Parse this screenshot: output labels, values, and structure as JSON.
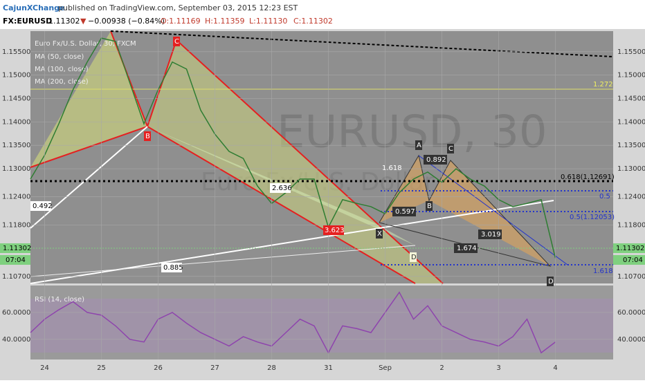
{
  "header": {
    "publisher": "CajunXChange",
    "published": "published on TradingView.com, September 03, 2015 12:23 EST",
    "symbol": "FX:EURUSD",
    "last": "1.11302",
    "arrow": "▼",
    "change": "−0.00938 (−0.84%)",
    "open": "O:1.11169",
    "high": "H:1.11359",
    "low": "L:1.11130",
    "close": "C:1.11302",
    "time_left": "07:04"
  },
  "chart_data": [
    {
      "type": "line",
      "title": "Euro Fx/U.S. Dollar, 30, FXCM",
      "watermark": "EURUSD, 30",
      "watermark_sub": "Euro Fx/U.S. Dollar",
      "indicators": [
        "MA (50, close)",
        "MA (100, close)",
        "MA (200, close)"
      ],
      "categories": [
        null,
        "24",
        null,
        null,
        null,
        "25",
        null,
        null,
        null,
        "26",
        null,
        null,
        null,
        "27",
        null,
        null,
        null,
        "28",
        null,
        null,
        null,
        "31",
        null,
        null,
        null,
        "Sep",
        null,
        null,
        null,
        "2",
        null,
        null,
        null,
        "3",
        null,
        null,
        null,
        "4",
        null,
        null,
        null,
        null
      ],
      "color": "#2e7d32",
      "values": [
        1.1278,
        1.1329,
        1.1396,
        1.1469,
        1.1528,
        1.1579,
        1.1572,
        1.1484,
        1.1396,
        1.1469,
        1.1528,
        1.1513,
        1.1425,
        1.1374,
        1.1337,
        1.1322,
        1.1263,
        1.1226,
        1.1249,
        1.1278,
        1.1278,
        1.1175,
        1.1234,
        1.1226,
        1.1219,
        1.1204,
        1.1249,
        1.1278,
        1.1293,
        1.1271,
        1.13,
        1.1278,
        1.1263,
        1.1234,
        1.1219,
        1.1226,
        1.1234,
        1.1109,
        null,
        null,
        null,
        null
      ],
      "ylim": [
        1.1055,
        1.1594
      ],
      "yticks": [
        {
          "value": 1.155,
          "label": "1.15500"
        },
        {
          "value": 1.15,
          "label": "1.15000"
        },
        {
          "value": 1.145,
          "label": "1.14500"
        },
        {
          "value": 1.14,
          "label": "1.14000"
        },
        {
          "value": 1.135,
          "label": "1.13500"
        },
        {
          "value": 1.13,
          "label": "1.13000"
        },
        {
          "value": 1.124,
          "label": "1.12400"
        },
        {
          "value": 1.118,
          "label": "1.11800"
        },
        {
          "value": 1.107,
          "label": "1.10700"
        }
      ],
      "annotations": [
        "0.492",
        "2.636",
        "0.885",
        "1.618",
        "3.623",
        "0.597",
        "0.892",
        "3.019",
        "1.674",
        "1.272",
        "0.618(1.12691)",
        "0.5",
        "0.5(1.12053)",
        "1.618",
        "B",
        "C",
        "A",
        "C",
        "B",
        "X",
        "D",
        "D"
      ]
    },
    {
      "type": "line",
      "title": "RSI (14, close)",
      "color": "#8e44ad",
      "values": [
        45,
        55,
        62,
        68,
        60,
        58,
        50,
        40,
        38,
        55,
        60,
        52,
        45,
        40,
        35,
        42,
        38,
        35,
        45,
        55,
        50,
        30,
        50,
        48,
        45,
        60,
        75,
        55,
        65,
        50,
        45,
        40,
        38,
        35,
        42,
        55,
        30,
        38,
        null,
        null,
        null,
        null
      ],
      "ylim": [
        25,
        79
      ],
      "yticks": [
        {
          "value": 60,
          "label": "60.0000"
        },
        {
          "value": 40,
          "label": "40.0000"
        }
      ]
    }
  ]
}
